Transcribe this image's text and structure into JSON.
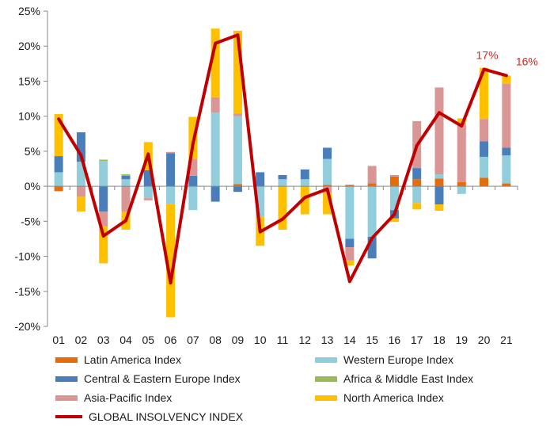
{
  "chart_data": {
    "type": "bar",
    "stacked": true,
    "categories": [
      "01",
      "02",
      "03",
      "04",
      "05",
      "06",
      "07",
      "08",
      "09",
      "10",
      "11",
      "12",
      "13",
      "14",
      "15",
      "16",
      "17",
      "18",
      "19",
      "20",
      "21"
    ],
    "ylim": [
      -20,
      25
    ],
    "yticks": [
      25,
      20,
      15,
      10,
      5,
      0,
      -5,
      -10,
      -15,
      -20
    ],
    "ytick_labels": [
      "25%",
      "20%",
      "15%",
      "10%",
      "5%",
      "0%",
      "-5%",
      "-10%",
      "-15%",
      "-20%"
    ],
    "grid": false,
    "legend_position": "bottom",
    "series": [
      {
        "name": "Latin America Index",
        "color": "#e46c0a",
        "values": [
          -0.7,
          0,
          0,
          0,
          0,
          0,
          0,
          0,
          0.3,
          0,
          0,
          0,
          0.2,
          0.2,
          0.4,
          1.4,
          1.0,
          1.1,
          0.6,
          1.2,
          0.4
        ]
      },
      {
        "name": "Western Europe Index",
        "color": "#92cddc",
        "values": [
          2.0,
          3.5,
          3.6,
          1.0,
          -1.7,
          -2.5,
          -3.4,
          10.5,
          9.7,
          -4.3,
          1.0,
          1.0,
          3.7,
          -7.5,
          -7.2,
          -3.4,
          -2.4,
          0.6,
          -1.1,
          3.0,
          4.0
        ]
      },
      {
        "name": "Central & Eastern Europe Index",
        "color": "#4a7ebb",
        "values": [
          2.3,
          4.2,
          -3.6,
          0.5,
          2.3,
          4.7,
          1.5,
          -2.2,
          -0.8,
          2.0,
          0.6,
          1.4,
          1.6,
          -1.2,
          -3.1,
          -1.2,
          1.6,
          -2.6,
          0,
          2.2,
          1.1
        ]
      },
      {
        "name": "Africa & Middle East Index",
        "color": "#9bbb59",
        "values": [
          0,
          0,
          0.2,
          0.2,
          0,
          0,
          0,
          0,
          0,
          0,
          0,
          0,
          0,
          0,
          0,
          0,
          0,
          0,
          0,
          0,
          0
        ]
      },
      {
        "name": "Asia-Pacific Index",
        "color": "#d99694",
        "values": [
          0,
          -1.5,
          -2.1,
          -3.6,
          -0.3,
          0.2,
          2.4,
          2.2,
          0.4,
          0,
          0,
          0,
          -0.9,
          -1.9,
          2.5,
          0.2,
          6.7,
          12.4,
          8.5,
          3.2,
          9.1
        ]
      },
      {
        "name": "North America Index",
        "color": "#ffc000",
        "values": [
          6.0,
          -2.1,
          -5.3,
          -2.6,
          4.0,
          -16.2,
          6.0,
          9.8,
          11.8,
          -4.2,
          -6.2,
          -4.0,
          -3.1,
          -0.7,
          0,
          -0.5,
          -0.9,
          -0.9,
          0.6,
          7.3,
          1.2
        ]
      }
    ],
    "line": {
      "name": "GLOBAL INSOLVENCY INDEX",
      "color": "#c00000",
      "values": [
        9.6,
        4.4,
        -7.1,
        -4.9,
        4.6,
        -13.8,
        6.1,
        20.4,
        21.6,
        -6.5,
        -4.7,
        -1.6,
        -0.4,
        -13.6,
        -7.4,
        -4.0,
        5.8,
        10.5,
        8.6,
        16.7,
        15.8
      ]
    },
    "annotations": [
      {
        "label": "17%",
        "category": "20",
        "value": 16.7
      },
      {
        "label": "16%",
        "category": "21",
        "value": 15.8
      }
    ]
  },
  "legend": {
    "latin_america": "Latin America Index",
    "western_europe": "Western Europe Index",
    "central_eastern_europe": "Central & Eastern Europe Index",
    "africa_middle_east": "Africa & Middle East Index",
    "asia_pacific": "Asia-Pacific Index",
    "north_america": "North America Index",
    "global_index": "GLOBAL INSOLVENCY INDEX"
  }
}
